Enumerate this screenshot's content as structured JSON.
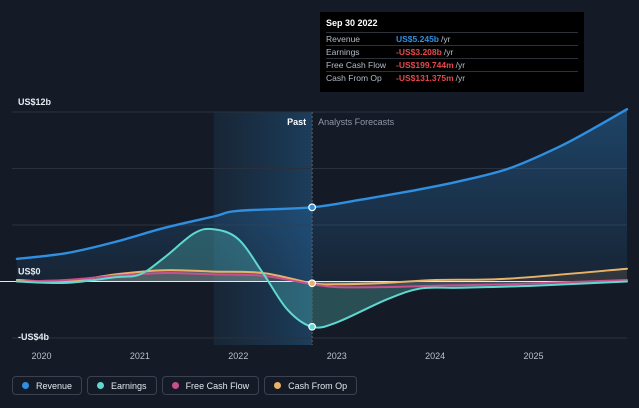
{
  "chart_data": {
    "type": "line",
    "y_unit_label_top": "US$12b",
    "y_unit_label_zero": "US$0",
    "y_unit_label_bottom": "-US$4b",
    "ylim": [
      -4.5,
      12
    ],
    "xlim": [
      2019.7,
      2025.95
    ],
    "x_ticks": [
      2020,
      2021,
      2022,
      2023,
      2024,
      2025
    ],
    "x_tick_labels": [
      "2020",
      "2021",
      "2022",
      "2023",
      "2024",
      "2025"
    ],
    "past_label": "Past",
    "forecast_label": "Analysts Forecasts",
    "divider_x": 2022.75,
    "shade_start_x": 2021.75,
    "series": [
      {
        "name": "Revenue",
        "color": "#2f8fe0",
        "points": [
          [
            2019.75,
            1.6
          ],
          [
            2020.25,
            2.0
          ],
          [
            2020.75,
            2.8
          ],
          [
            2021.25,
            3.8
          ],
          [
            2021.75,
            4.6
          ],
          [
            2022.0,
            5.0
          ],
          [
            2022.75,
            5.25
          ],
          [
            2023.25,
            5.8
          ],
          [
            2023.75,
            6.4
          ],
          [
            2024.25,
            7.1
          ],
          [
            2024.75,
            8.0
          ],
          [
            2025.25,
            9.5
          ],
          [
            2025.6,
            10.8
          ],
          [
            2025.95,
            12.2
          ]
        ]
      },
      {
        "name": "Earnings",
        "color": "#5fd8d0",
        "points": [
          [
            2019.75,
            0
          ],
          [
            2020.25,
            -0.1
          ],
          [
            2020.75,
            0.3
          ],
          [
            2021.0,
            0.5
          ],
          [
            2021.25,
            1.7
          ],
          [
            2021.55,
            3.4
          ],
          [
            2021.75,
            3.7
          ],
          [
            2022.0,
            3.0
          ],
          [
            2022.25,
            0.6
          ],
          [
            2022.5,
            -2.0
          ],
          [
            2022.75,
            -3.21
          ],
          [
            2023.0,
            -2.9
          ],
          [
            2023.5,
            -1.3
          ],
          [
            2023.85,
            -0.5
          ],
          [
            2024.25,
            -0.45
          ],
          [
            2025.0,
            -0.3
          ],
          [
            2025.95,
            0
          ]
        ]
      },
      {
        "name": "Free Cash Flow",
        "color": "#c84f8e",
        "points": [
          [
            2019.75,
            0
          ],
          [
            2020.25,
            0.1
          ],
          [
            2020.75,
            0.4
          ],
          [
            2021.25,
            0.6
          ],
          [
            2021.75,
            0.5
          ],
          [
            2022.25,
            0.4
          ],
          [
            2022.75,
            -0.2
          ],
          [
            2023.0,
            -0.4
          ],
          [
            2023.5,
            -0.4
          ],
          [
            2024.0,
            -0.3
          ],
          [
            2024.75,
            -0.2
          ],
          [
            2025.95,
            0.1
          ]
        ]
      },
      {
        "name": "Cash From Op",
        "color": "#e8b26a",
        "points": [
          [
            2019.75,
            0.1
          ],
          [
            2020.25,
            0
          ],
          [
            2020.75,
            0.5
          ],
          [
            2021.25,
            0.8
          ],
          [
            2021.75,
            0.7
          ],
          [
            2022.25,
            0.6
          ],
          [
            2022.75,
            -0.13
          ],
          [
            2023.0,
            -0.2
          ],
          [
            2023.5,
            -0.1
          ],
          [
            2024.0,
            0.1
          ],
          [
            2024.75,
            0.2
          ],
          [
            2025.95,
            0.9
          ]
        ]
      }
    ],
    "markers": [
      {
        "series": "Revenue",
        "x": 2022.75,
        "y": 5.25
      },
      {
        "series": "Earnings",
        "x": 2022.75,
        "y": -3.21
      },
      {
        "series": "Cash From Op",
        "x": 2022.75,
        "y": -0.13
      }
    ]
  },
  "tooltip": {
    "date": "Sep 30 2022",
    "rows": [
      {
        "label": "Revenue",
        "value": "US$5.245b",
        "unit": "/yr",
        "color": "#2f8fe0"
      },
      {
        "label": "Earnings",
        "value": "-US$3.208b",
        "unit": "/yr",
        "color": "#e5484d"
      },
      {
        "label": "Free Cash Flow",
        "value": "-US$199.744m",
        "unit": "/yr",
        "color": "#e5484d"
      },
      {
        "label": "Cash From Op",
        "value": "-US$131.375m",
        "unit": "/yr",
        "color": "#e5484d"
      }
    ]
  },
  "legend": [
    {
      "label": "Revenue",
      "color": "#2f8fe0"
    },
    {
      "label": "Earnings",
      "color": "#5fd8d0"
    },
    {
      "label": "Free Cash Flow",
      "color": "#c84f8e"
    },
    {
      "label": "Cash From Op",
      "color": "#e8b26a"
    }
  ]
}
